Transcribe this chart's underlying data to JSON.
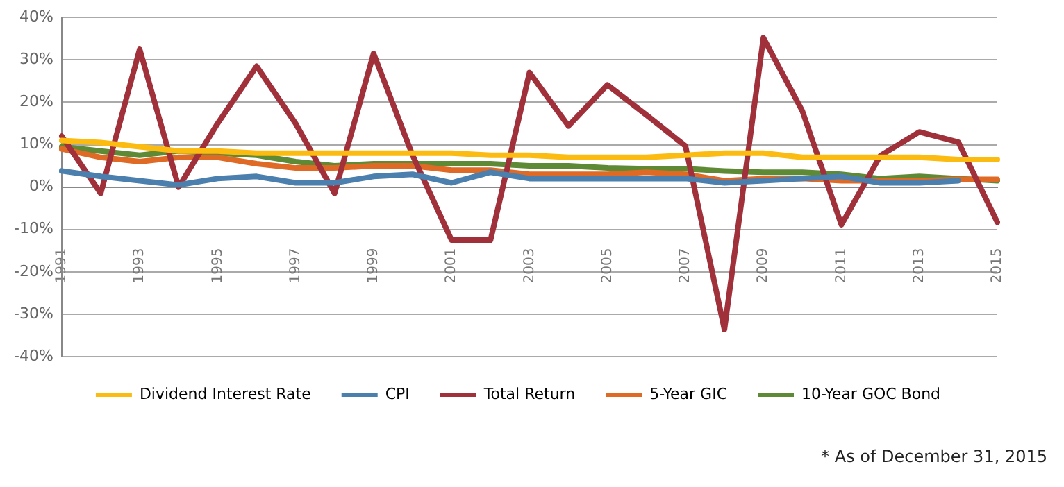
{
  "chart_data": {
    "type": "line",
    "categories": [
      "1991",
      null,
      "1993",
      null,
      "1995",
      null,
      "1997",
      null,
      "1999",
      null,
      "2001",
      null,
      "2003",
      null,
      "2005",
      null,
      "2007",
      null,
      "2009",
      null,
      "2011",
      null,
      "2013",
      null,
      "2015"
    ],
    "series": [
      {
        "name": "Dividend Interest Rate",
        "color": "#fbbb10",
        "values": [
          11,
          10.5,
          9.5,
          8.5,
          8.5,
          8,
          8,
          8,
          8,
          8,
          8,
          7.5,
          7.5,
          7,
          7,
          7,
          7.5,
          8,
          8,
          7,
          7,
          7,
          7,
          6.5,
          6.5
        ]
      },
      {
        "name": "CPI",
        "color": "#4a7fae",
        "values": [
          3.8,
          2.5,
          1.5,
          0.5,
          2,
          2.5,
          1,
          1,
          2.5,
          3,
          1,
          3.5,
          2,
          2,
          2,
          2,
          2,
          1,
          1.5,
          2,
          2.5,
          1,
          1,
          1.5,
          null
        ]
      },
      {
        "name": "Total Return",
        "color": "#a0313a",
        "values": [
          12,
          -1.5,
          32.5,
          0,
          15,
          28.5,
          15,
          -1.5,
          31.5,
          7.5,
          -12.5,
          -12.5,
          27,
          14.4,
          24.1,
          17,
          9.7,
          -33.6,
          35.2,
          17.9,
          -8.9,
          7.4,
          13,
          10.6,
          -8.3
        ]
      },
      {
        "name": "5-Year GIC",
        "color": "#df6a25",
        "values": [
          9,
          7,
          6,
          7,
          7,
          5.5,
          4.5,
          4.5,
          5,
          5,
          4,
          4,
          3,
          3,
          3,
          3.5,
          3,
          1.5,
          2,
          2,
          1.5,
          1.5,
          1.5,
          1.8,
          1.8
        ]
      },
      {
        "name": "10-Year GOC Bond",
        "color": "#5e8a35",
        "values": [
          9.5,
          8.5,
          7.5,
          8.5,
          8,
          7.5,
          6,
          5,
          5.5,
          5.5,
          5.5,
          5.5,
          5,
          5,
          4.5,
          4.3,
          4.3,
          3.8,
          3.5,
          3.5,
          3,
          2,
          2.5,
          2,
          1.5
        ]
      }
    ],
    "ylim": [
      -40,
      40
    ],
    "yticks": [
      {
        "value": -40,
        "label": "-40%"
      },
      {
        "value": -30,
        "label": "-30%"
      },
      {
        "value": -20,
        "label": "-20%"
      },
      {
        "value": -10,
        "label": "-10%"
      },
      {
        "value": 0,
        "label": "0%"
      },
      {
        "value": 10,
        "label": "10%"
      },
      {
        "value": 20,
        "label": "20%"
      },
      {
        "value": 30,
        "label": "30%"
      },
      {
        "value": 40,
        "label": "40%"
      }
    ],
    "grid": "y",
    "legend": "bottom",
    "marker": "none",
    "line_style": "solid",
    "annotations": [
      "* As of December 31, 2015"
    ]
  }
}
